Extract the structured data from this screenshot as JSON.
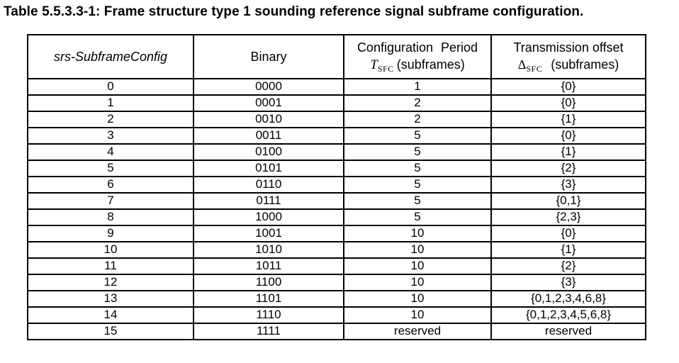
{
  "title": "Table 5.5.3.3-1: Frame structure type 1 sounding reference signal subframe configuration.",
  "table": {
    "columns": [
      {
        "label": "srs-SubframeConfig"
      },
      {
        "label": "Binary"
      },
      {
        "line1": "Configuration Period",
        "symbol": "T",
        "subscript": "SFC",
        "suffix": "(subframes)"
      },
      {
        "line1": "Transmission offset",
        "symbol": "Δ",
        "subscript": "SFC",
        "suffix": "(subframes)"
      }
    ],
    "rows": [
      [
        "0",
        "0000",
        "1",
        "{0}"
      ],
      [
        "1",
        "0001",
        "2",
        "{0}"
      ],
      [
        "2",
        "0010",
        "2",
        "{1}"
      ],
      [
        "3",
        "0011",
        "5",
        "{0}"
      ],
      [
        "4",
        "0100",
        "5",
        "{1}"
      ],
      [
        "5",
        "0101",
        "5",
        "{2}"
      ],
      [
        "6",
        "0110",
        "5",
        "{3}"
      ],
      [
        "7",
        "0111",
        "5",
        "{0,1}"
      ],
      [
        "8",
        "1000",
        "5",
        "{2,3}"
      ],
      [
        "9",
        "1001",
        "10",
        "{0}"
      ],
      [
        "10",
        "1010",
        "10",
        "{1}"
      ],
      [
        "11",
        "1011",
        "10",
        "{2}"
      ],
      [
        "12",
        "1100",
        "10",
        "{3}"
      ],
      [
        "13",
        "1101",
        "10",
        "{0,1,2,3,4,6,8}"
      ],
      [
        "14",
        "1110",
        "10",
        "{0,1,2,3,4,5,6,8}"
      ],
      [
        "15",
        "1111",
        "reserved",
        "reserved"
      ]
    ]
  },
  "colors": {
    "text": "#000000",
    "border": "#000000",
    "background": "#ffffff"
  }
}
